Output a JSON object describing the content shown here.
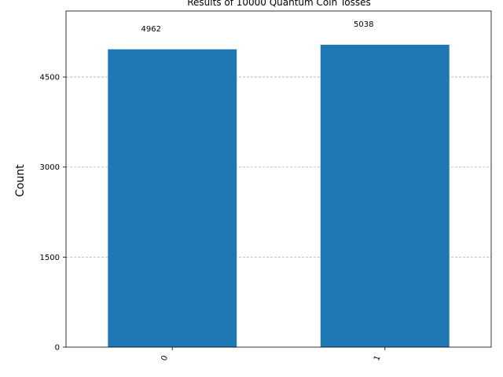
{
  "chart_data": {
    "type": "bar",
    "title": "Results of 10000 Quantum Coin Tosses",
    "xlabel": "",
    "ylabel": "Count",
    "categories": [
      "0",
      "1"
    ],
    "values": [
      4962,
      5038
    ],
    "data_labels": [
      "4962",
      "5038"
    ],
    "yticks": [
      0,
      1500,
      3000,
      4500
    ],
    "ytick_labels": [
      "0",
      "1500",
      "3000",
      "4500"
    ],
    "ylim": [
      0,
      5600
    ],
    "grid": "horizontal-dashed",
    "bar_color": "#1f77b4",
    "xtick_rotation": "vertical"
  }
}
